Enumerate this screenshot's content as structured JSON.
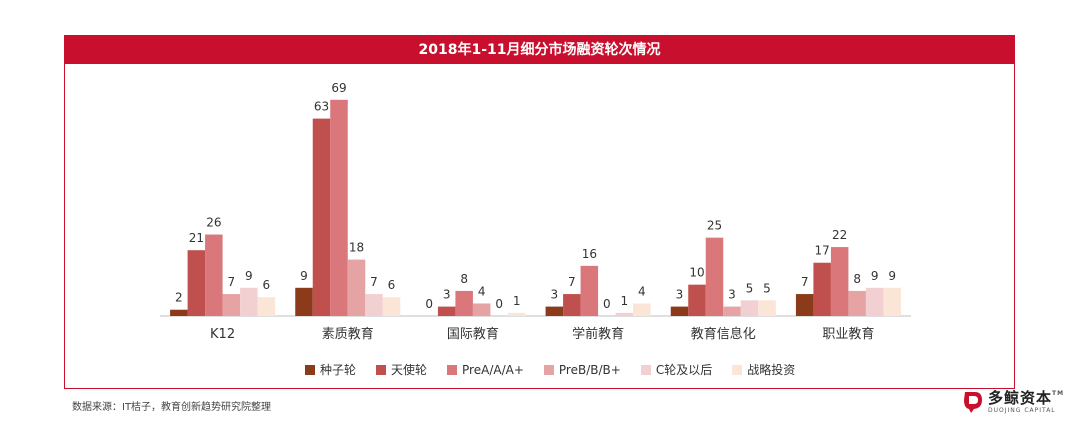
{
  "chart_data": {
    "type": "bar",
    "title": "2018年1-11月细分市场融资轮次情况",
    "categories": [
      "K12",
      "素质教育",
      "国际教育",
      "学前教育",
      "教育信息化",
      "职业教育"
    ],
    "series": [
      {
        "name": "种子轮",
        "color": "#8b3a1a",
        "values": [
          2,
          9,
          0,
          3,
          3,
          7
        ]
      },
      {
        "name": "天使轮",
        "color": "#c0504d",
        "values": [
          21,
          63,
          3,
          7,
          10,
          17
        ]
      },
      {
        "name": "PreA/A/A+",
        "color": "#d9777a",
        "values": [
          26,
          69,
          8,
          16,
          25,
          22
        ]
      },
      {
        "name": "PreB/B/B+",
        "color": "#e6a3a3",
        "values": [
          7,
          18,
          4,
          0,
          3,
          8
        ]
      },
      {
        "name": "C轮及以后",
        "color": "#f2cfd0",
        "values": [
          9,
          7,
          0,
          1,
          5,
          9
        ]
      },
      {
        "name": "战略投资",
        "color": "#fbe5d6",
        "values": [
          6,
          6,
          1,
          4,
          5,
          9
        ]
      }
    ],
    "ylim": [
      0,
      75
    ],
    "grid": false,
    "legend_position": "bottom"
  },
  "footer": {
    "source": "数据来源：IT桔子，教育创新趋势研究院整理",
    "logo_cn": "多鲸资本",
    "logo_en": "DUOJING CAPITAL",
    "logo_tm": "TM"
  }
}
